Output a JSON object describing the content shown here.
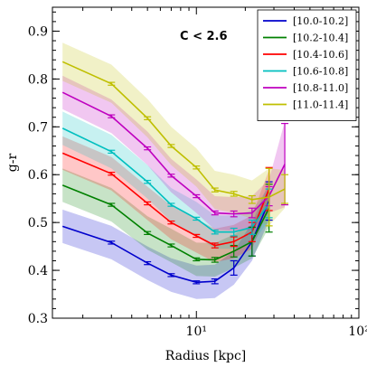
{
  "chart_data": {
    "type": "line",
    "xlabel": "Radius [kpc]",
    "ylabel": "g-r",
    "xscale": "log",
    "xlim": [
      1.3,
      100
    ],
    "ylim": [
      0.3,
      0.95
    ],
    "xticks": [
      {
        "value": 10,
        "label": "10¹"
      },
      {
        "value": 100,
        "label": "10²"
      }
    ],
    "yticks": [
      0.3,
      0.4,
      0.5,
      0.6,
      0.7,
      0.8,
      0.9
    ],
    "annotation": "C < 2.6",
    "legend_position": "top-right",
    "series": [
      {
        "name": "[10.0-10.2]",
        "color": "#0000cc",
        "x": [
          1.5,
          3.0,
          5.0,
          7.0,
          10.0,
          13.0,
          17.0,
          22.0,
          28.0
        ],
        "y": [
          0.492,
          0.458,
          0.415,
          0.39,
          0.375,
          0.377,
          0.405,
          0.46,
          0.545
        ],
        "err": [
          0.0,
          0.003,
          0.003,
          0.003,
          0.003,
          0.005,
          0.015,
          0.03,
          0.04
        ],
        "band": [
          0.035,
          0.035,
          0.035,
          0.035,
          0.035,
          0.035,
          0.035,
          0.04,
          0.04
        ]
      },
      {
        "name": "[10.2-10.4]",
        "color": "#008000",
        "x": [
          1.5,
          3.0,
          5.0,
          7.0,
          10.0,
          13.0,
          17.0,
          22.0,
          28.0
        ],
        "y": [
          0.578,
          0.537,
          0.478,
          0.452,
          0.423,
          0.422,
          0.44,
          0.46,
          0.53
        ],
        "err": [
          0.0,
          0.003,
          0.003,
          0.003,
          0.003,
          0.005,
          0.012,
          0.03,
          0.05
        ],
        "band": [
          0.035,
          0.035,
          0.035,
          0.035,
          0.035,
          0.035,
          0.035,
          0.035,
          0.04
        ]
      },
      {
        "name": "[10.4-10.6]",
        "color": "#ff0000",
        "x": [
          1.5,
          3.0,
          5.0,
          7.0,
          10.0,
          13.0,
          17.0,
          22.0,
          28.0
        ],
        "y": [
          0.645,
          0.602,
          0.54,
          0.5,
          0.472,
          0.452,
          0.46,
          0.48,
          0.57
        ],
        "err": [
          0.0,
          0.003,
          0.003,
          0.003,
          0.003,
          0.005,
          0.01,
          0.02,
          0.045
        ],
        "band": [
          0.035,
          0.035,
          0.035,
          0.035,
          0.035,
          0.035,
          0.035,
          0.035,
          0.04
        ]
      },
      {
        "name": "[10.6-10.8]",
        "color": "#00bfbf",
        "x": [
          1.5,
          3.0,
          5.0,
          7.0,
          10.0,
          13.0,
          17.0,
          22.0,
          28.0
        ],
        "y": [
          0.697,
          0.648,
          0.585,
          0.537,
          0.508,
          0.48,
          0.48,
          0.49,
          0.54
        ],
        "err": [
          0.0,
          0.003,
          0.003,
          0.003,
          0.003,
          0.004,
          0.008,
          0.015,
          0.03
        ],
        "band": [
          0.035,
          0.035,
          0.035,
          0.035,
          0.035,
          0.035,
          0.035,
          0.035,
          0.035
        ]
      },
      {
        "name": "[10.8-11.0]",
        "color": "#bf00bf",
        "x": [
          1.5,
          3.0,
          5.0,
          7.0,
          10.0,
          13.0,
          17.0,
          22.0,
          28.0,
          35.0
        ],
        "y": [
          0.772,
          0.722,
          0.655,
          0.598,
          0.555,
          0.52,
          0.518,
          0.52,
          0.555,
          0.622
        ],
        "err": [
          0.0,
          0.003,
          0.003,
          0.003,
          0.003,
          0.004,
          0.006,
          0.01,
          0.02,
          0.085
        ],
        "band": [
          0.035,
          0.035,
          0.035,
          0.035,
          0.035,
          0.035,
          0.035,
          0.035,
          0.035,
          0.09
        ]
      },
      {
        "name": "[11.0-11.4]",
        "color": "#bfbf00",
        "x": [
          1.5,
          3.0,
          5.0,
          7.0,
          10.0,
          13.0,
          17.0,
          22.0,
          28.0,
          35.0
        ],
        "y": [
          0.836,
          0.79,
          0.718,
          0.66,
          0.615,
          0.568,
          0.56,
          0.548,
          0.553,
          0.57
        ],
        "err": [
          0.0,
          0.003,
          0.003,
          0.003,
          0.003,
          0.004,
          0.005,
          0.008,
          0.06,
          0.03
        ],
        "band": [
          0.04,
          0.04,
          0.04,
          0.04,
          0.04,
          0.04,
          0.04,
          0.04,
          0.06,
          0.04
        ]
      }
    ]
  }
}
